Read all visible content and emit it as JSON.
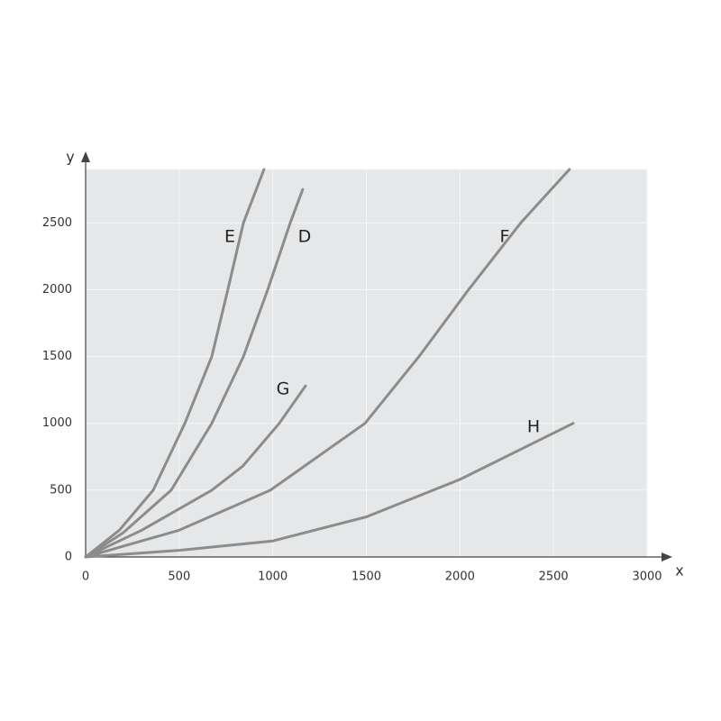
{
  "chart_data": {
    "type": "line",
    "x_label": "x",
    "y_label": "y",
    "xlim": [
      0,
      3000
    ],
    "xticks": [
      0,
      500,
      1000,
      1500,
      2000,
      2500,
      3000
    ],
    "ylim": [
      0,
      2900
    ],
    "yticks": [
      0,
      500,
      1000,
      1500,
      2000,
      2500
    ],
    "grid": true,
    "series": [
      {
        "name": "E",
        "color": "#8c8c8c",
        "x": [
          0,
          180,
          361,
          530,
          674,
          760,
          843,
          953
        ],
        "values": [
          0,
          200,
          500,
          1000,
          1500,
          2000,
          2500,
          2900
        ]
      },
      {
        "name": "D",
        "color": "#8c8c8c",
        "x": [
          0,
          200,
          457,
          674,
          843,
          973,
          1093,
          1160
        ],
        "values": [
          0,
          180,
          500,
          1000,
          1500,
          2000,
          2500,
          2750
        ]
      },
      {
        "name": "G",
        "color": "#8c8c8c",
        "x": [
          0,
          300,
          674,
          840,
          1035,
          1175
        ],
        "values": [
          0,
          200,
          500,
          680,
          1000,
          1280
        ]
      },
      {
        "name": "F",
        "color": "#8c8c8c",
        "x": [
          0,
          500,
          987,
          1493,
          1781,
          2046,
          2325,
          2585
        ],
        "values": [
          0,
          200,
          500,
          1000,
          1500,
          2000,
          2500,
          2900
        ]
      },
      {
        "name": "H",
        "color": "#8c8c8c",
        "x": [
          0,
          500,
          1000,
          1500,
          2000,
          2605
        ],
        "values": [
          0,
          50,
          120,
          300,
          580,
          1000
        ]
      }
    ]
  }
}
